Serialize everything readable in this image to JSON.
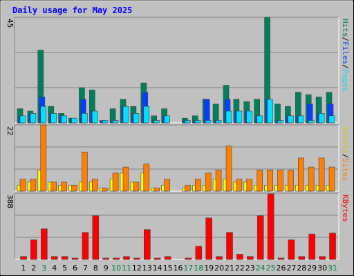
{
  "chart_data": [
    {
      "type": "bar",
      "title": "Daily usage for May 2025",
      "legend_separator": "/",
      "ylim": [
        0,
        45
      ],
      "yticks": [
        45
      ],
      "grid_lines": 3,
      "series": [
        {
          "name": "Hits",
          "color": "#00805c",
          "values": [
            6,
            5,
            31,
            7,
            4,
            2,
            15,
            14,
            1,
            6,
            10,
            7,
            17,
            3,
            6,
            0,
            2,
            3,
            10,
            8,
            16,
            10,
            9,
            10,
            45,
            8,
            7,
            13,
            12,
            11,
            13
          ]
        },
        {
          "name": "Files",
          "color": "#0040ff",
          "values": [
            3,
            4,
            11,
            4,
            3,
            2,
            10,
            5,
            1,
            1,
            7,
            4,
            13,
            1,
            3,
            0,
            1,
            1,
            10,
            1,
            10,
            5,
            5,
            3,
            10,
            1,
            3,
            3,
            8,
            4,
            8
          ]
        },
        {
          "name": "Pages",
          "color": "#00e0ff",
          "values": [
            3,
            4,
            7,
            4,
            3,
            2,
            4,
            5,
            1,
            1,
            7,
            4,
            7,
            1,
            3,
            0,
            1,
            1,
            1,
            1,
            5,
            5,
            5,
            3,
            10,
            1,
            3,
            3,
            1,
            4,
            3
          ]
        }
      ]
    },
    {
      "type": "bar",
      "ylim": [
        0,
        22
      ],
      "yticks": [
        22
      ],
      "grid_lines": 3,
      "series": [
        {
          "name": "Visits",
          "color": "#ffff00",
          "values": [
            2,
            3,
            7,
            3,
            2,
            2,
            3,
            3,
            1,
            4,
            6,
            3,
            6,
            1,
            2,
            0,
            1,
            2,
            2,
            4,
            4,
            3,
            3,
            2,
            2,
            2,
            2,
            2,
            2,
            2,
            2
          ]
        },
        {
          "name": "Sites",
          "color": "#ff8000",
          "values": [
            4,
            4,
            22,
            3,
            3,
            2,
            13,
            4,
            1,
            6,
            8,
            3,
            9,
            1,
            4,
            0,
            2,
            4,
            6,
            7,
            15,
            4,
            4,
            7,
            7,
            7,
            7,
            11,
            8,
            11,
            8
          ]
        }
      ]
    },
    {
      "type": "bar",
      "ylim": [
        0,
        388
      ],
      "yticks": [
        388
      ],
      "grid_lines": 3,
      "categories": [
        "1",
        "2",
        "3",
        "4",
        "5",
        "6",
        "7",
        "8",
        "9",
        "10",
        "11",
        "12",
        "13",
        "14",
        "15",
        "16",
        "17",
        "18",
        "19",
        "20",
        "21",
        "22",
        "23",
        "24",
        "25",
        "26",
        "27",
        "28",
        "29",
        "30",
        "31"
      ],
      "category_colors": [
        "#000000",
        "#000000",
        "#008040",
        "#000000",
        "#000000",
        "#000000",
        "#000000",
        "#000000",
        "#000000",
        "#008040",
        "#008040",
        "#000000",
        "#000000",
        "#000000",
        "#000000",
        "#000000",
        "#008040",
        "#008040",
        "#000000",
        "#000000",
        "#000000",
        "#000000",
        "#000000",
        "#008040",
        "#008040",
        "#000000",
        "#000000",
        "#000000",
        "#000000",
        "#000000",
        "#008040"
      ],
      "series": [
        {
          "name": "KBytes",
          "color": "#ff0000",
          "values": [
            17,
            115,
            179,
            17,
            17,
            8,
            158,
            256,
            8,
            8,
            17,
            8,
            175,
            8,
            17,
            0,
            8,
            77,
            243,
            17,
            158,
            30,
            17,
            256,
            384,
            8,
            115,
            17,
            149,
            17,
            154
          ]
        }
      ]
    }
  ]
}
